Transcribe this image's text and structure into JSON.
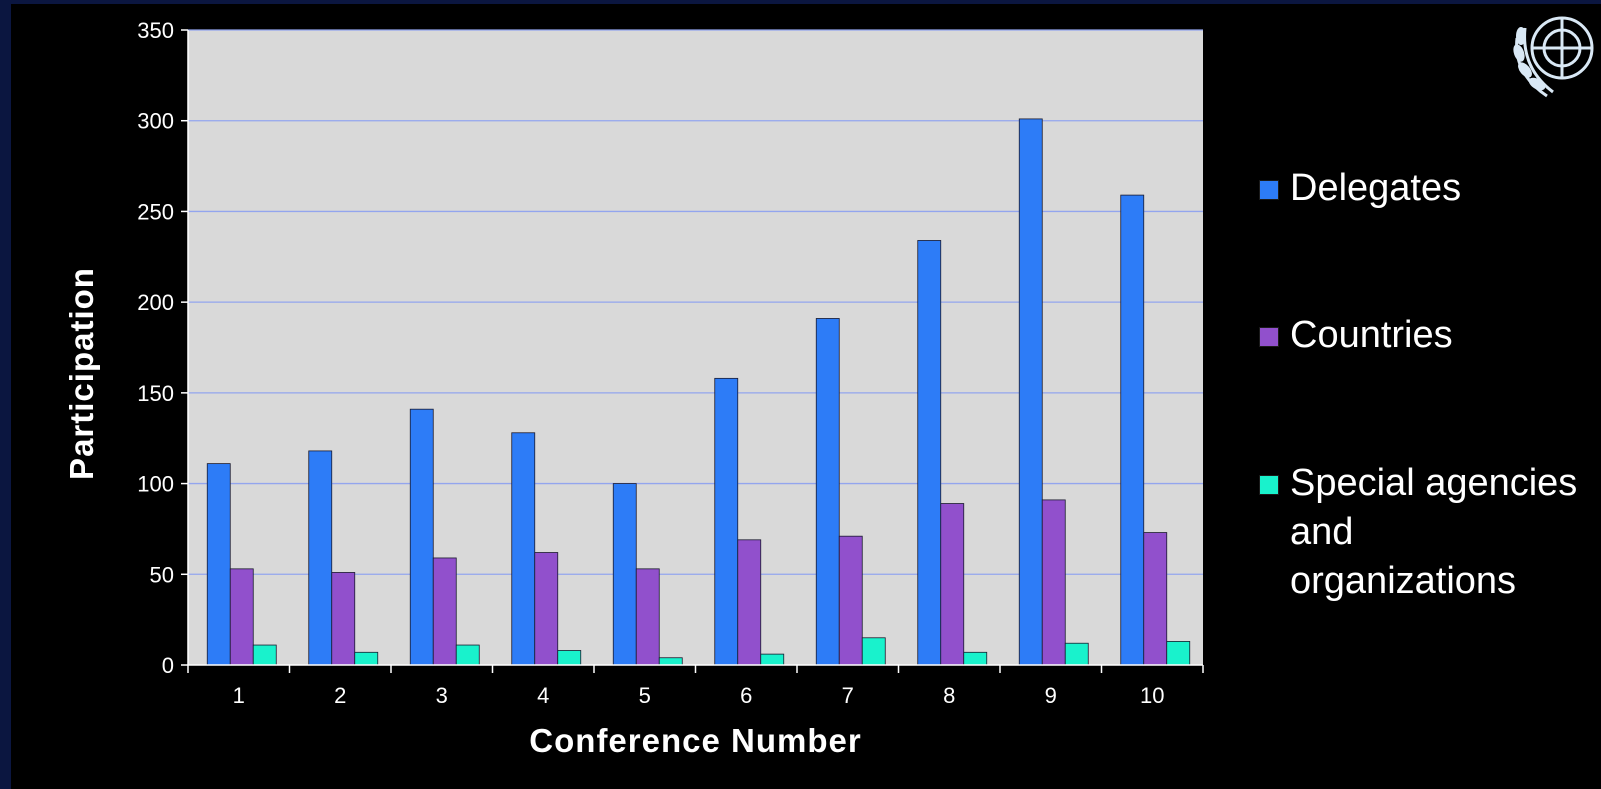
{
  "chart_data": {
    "type": "bar",
    "categories": [
      "1",
      "2",
      "3",
      "4",
      "5",
      "6",
      "7",
      "8",
      "9",
      "10"
    ],
    "series": [
      {
        "name": "Delegates",
        "color": "#2d7cf7",
        "values": [
          111,
          118,
          141,
          128,
          100,
          158,
          191,
          234,
          301,
          259
        ]
      },
      {
        "name": "Countries",
        "color": "#9150cc",
        "values": [
          53,
          51,
          59,
          62,
          53,
          69,
          71,
          89,
          91,
          73
        ]
      },
      {
        "name": "Special agencies and organizations",
        "color": "#19f2cc",
        "values": [
          11,
          7,
          11,
          8,
          4,
          6,
          15,
          7,
          12,
          13
        ]
      }
    ],
    "xlabel": "Conference Number",
    "ylabel": "Participation",
    "ylim": [
      0,
      350
    ],
    "yticks": [
      "0",
      "50",
      "100",
      "150",
      "200",
      "250",
      "300",
      "350"
    ],
    "grid": true,
    "legend_position": "right",
    "plot_background": "#d9d9d9",
    "gridline_color": "#93a5ee"
  },
  "emblem": {
    "icon": "un-emblem-icon"
  }
}
